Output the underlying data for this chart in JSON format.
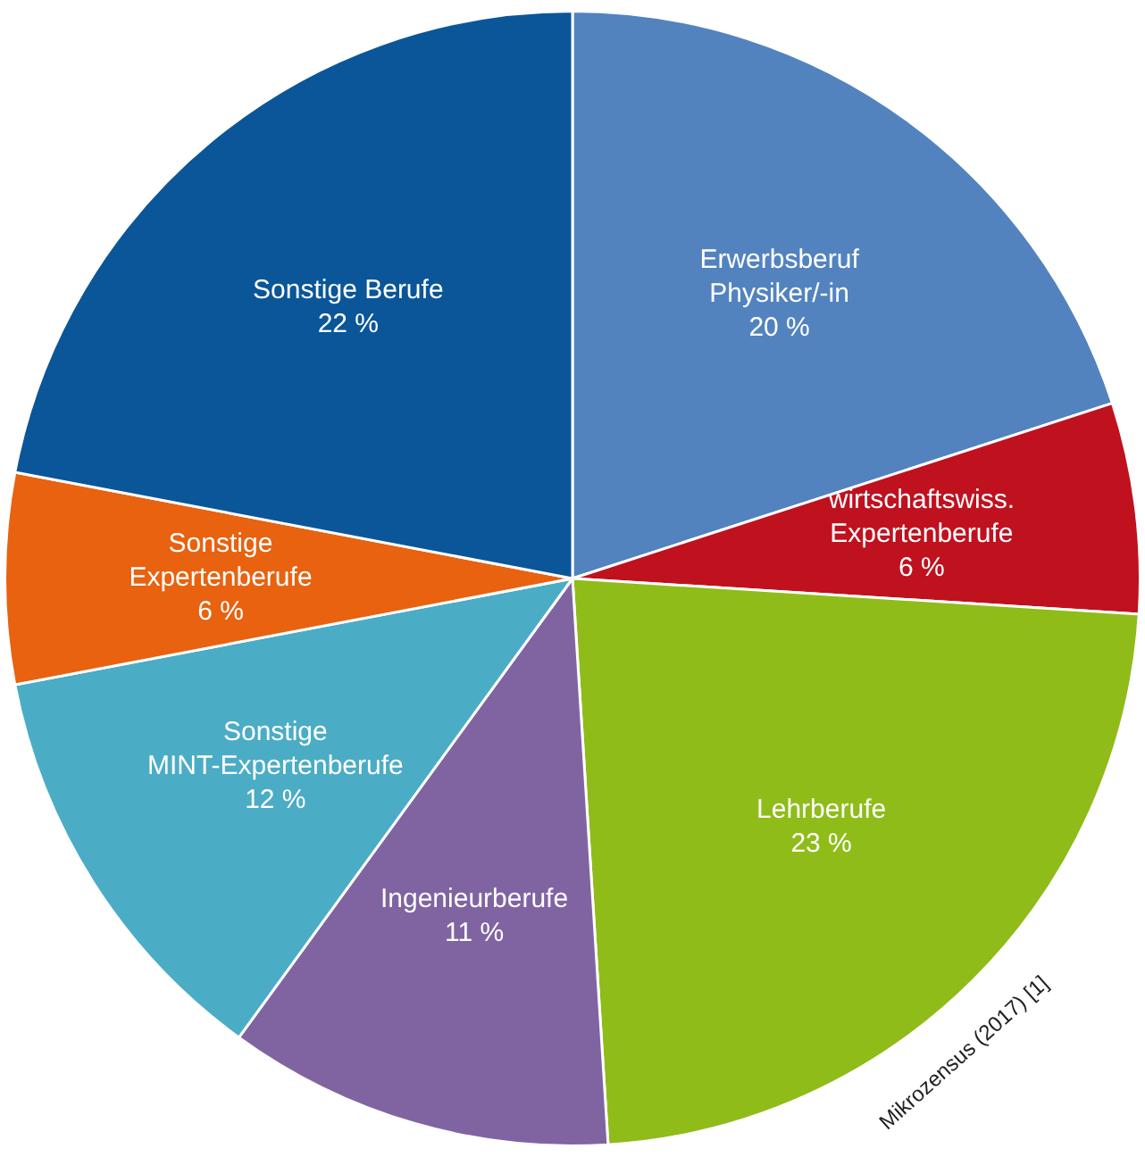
{
  "chart_data": {
    "type": "pie",
    "categories": [
      "Erwerbsberuf\nPhysiker/-in",
      "wirtschaftswiss.\nExpertenberufe",
      "Lehrberufe",
      "Ingenieurberufe",
      "Sonstige\nMINT-Expertenberufe",
      "Sonstige\nExpertenberufe",
      "Sonstige Berufe"
    ],
    "values": [
      20,
      6,
      23,
      11,
      12,
      6,
      22
    ],
    "value_labels": [
      "20 %",
      "6 %",
      "23 %",
      "11 %",
      "12 %",
      "6 %",
      "22 %"
    ],
    "colors": [
      "#5283bf",
      "#c0111f",
      "#8fbc19",
      "#8064a2",
      "#4bacc6",
      "#e8620f",
      "#0a5699"
    ],
    "annotations": [
      "Mikrozensus (2017) [1]"
    ],
    "legend": false
  }
}
